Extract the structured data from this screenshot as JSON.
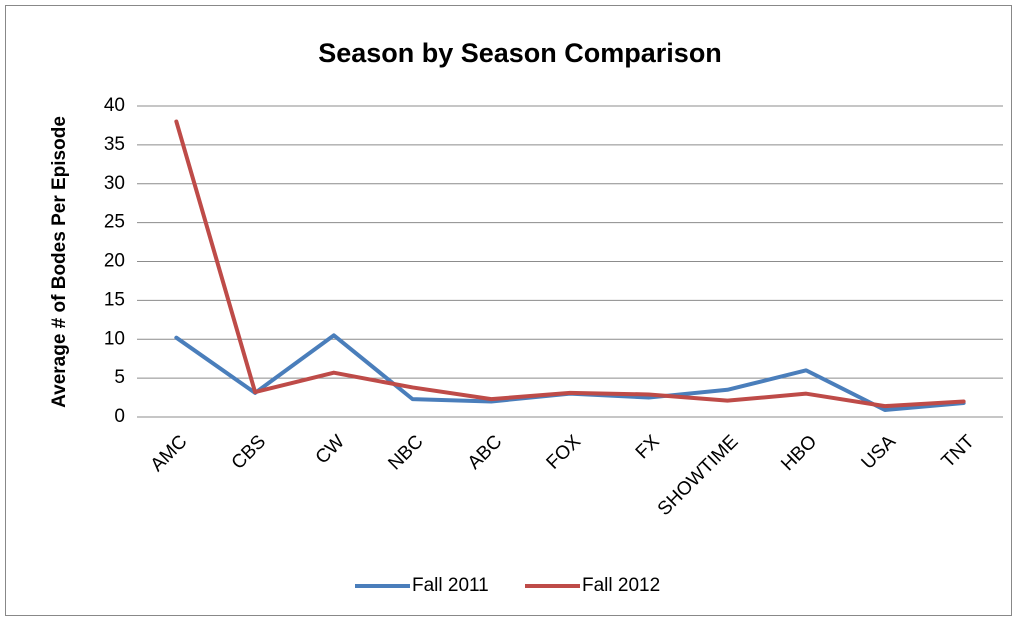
{
  "chart_data": {
    "type": "line",
    "title": "Season by Season Comparison",
    "y_label": "Average # of Bodes Per Episode",
    "categories": [
      "AMC",
      "CBS",
      "CW",
      "NBC",
      "ABC",
      "FOX",
      "FX",
      "SHOWTIME",
      "HBO",
      "USA",
      "TNT"
    ],
    "series": [
      {
        "name": "Fall 2011",
        "color": "#4a7ebb",
        "values": [
          10.2,
          3.1,
          10.5,
          2.3,
          2.0,
          3.0,
          2.5,
          3.5,
          6.0,
          0.9,
          1.8
        ]
      },
      {
        "name": "Fall 2012",
        "color": "#be4b48",
        "values": [
          38,
          3.2,
          5.7,
          3.8,
          2.3,
          3.1,
          2.9,
          2.1,
          3.0,
          1.4,
          2.0
        ]
      }
    ],
    "ylim": [
      0,
      40
    ],
    "yticks": [
      0,
      5,
      10,
      15,
      20,
      25,
      30,
      35,
      40
    ],
    "grid": true,
    "legend": "bottom"
  }
}
